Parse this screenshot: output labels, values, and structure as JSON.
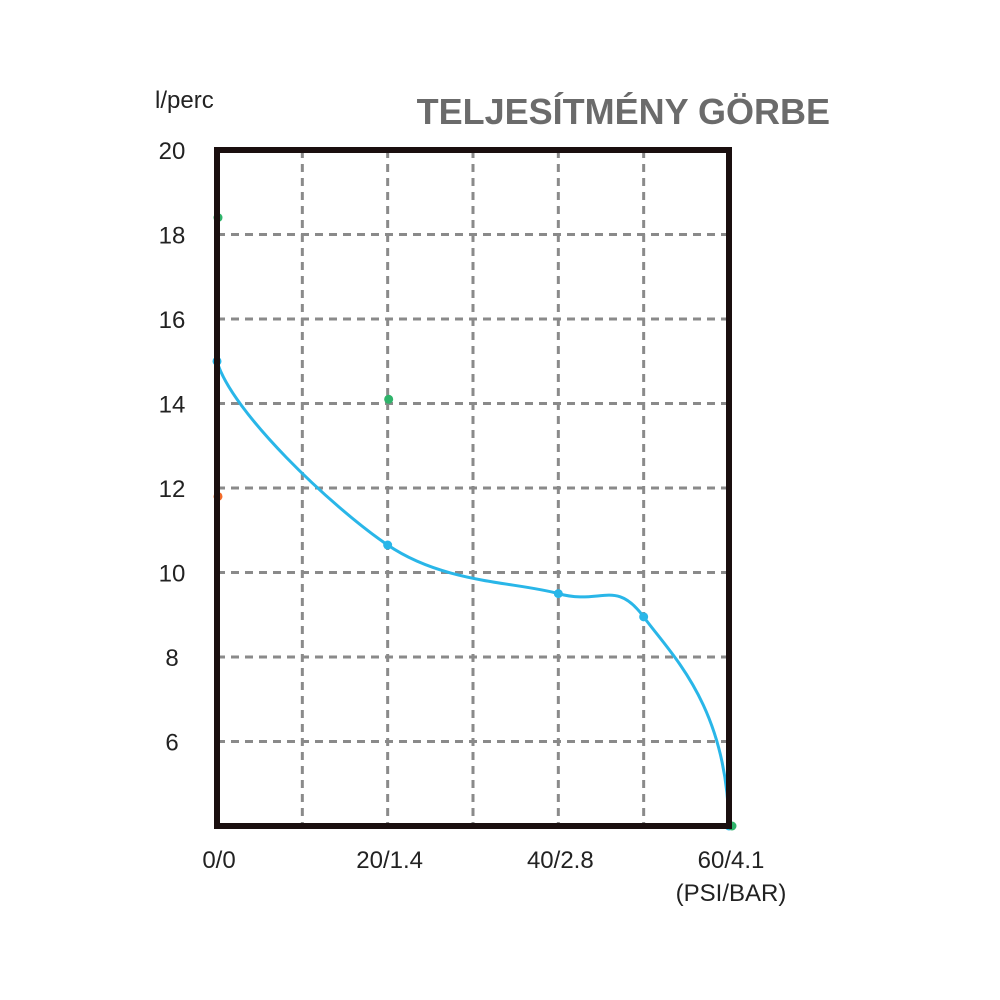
{
  "chart_data": {
    "type": "line",
    "title": "TELJESÍTMÉNY GÖRBE",
    "ylabel": "l/perc",
    "xunit": "(PSI/BAR)",
    "x_ticks": [
      {
        "value": 0,
        "label": "0/0"
      },
      {
        "value": 20,
        "label": "20/1.4"
      },
      {
        "value": 40,
        "label": "40/2.8"
      },
      {
        "value": 60,
        "label": "60/4.1"
      }
    ],
    "y_ticks": [
      6,
      8,
      10,
      12,
      14,
      16,
      18,
      20
    ],
    "xlim": [
      0,
      60
    ],
    "ylim": [
      4,
      20
    ],
    "grid": true,
    "series": [
      {
        "color": "#29b6e8",
        "points": [
          [
            0,
            15.0
          ],
          [
            20,
            10.65
          ],
          [
            40,
            9.5
          ],
          [
            50,
            8.95
          ],
          [
            60,
            4.0
          ]
        ]
      }
    ],
    "markers": [
      {
        "x": 0,
        "y": 18.4,
        "color": "#2fb36a"
      },
      {
        "x": 20,
        "y": 14.1,
        "color": "#2fb36a"
      },
      {
        "x": 0,
        "y": 11.8,
        "color": "#f26b2a"
      },
      {
        "x": 60,
        "y": 4.0,
        "color": "#2fb36a"
      }
    ],
    "colors": {
      "frame": "#1a0f0f",
      "grid": "#8a8a8a",
      "title": "#6b6b6b"
    }
  }
}
